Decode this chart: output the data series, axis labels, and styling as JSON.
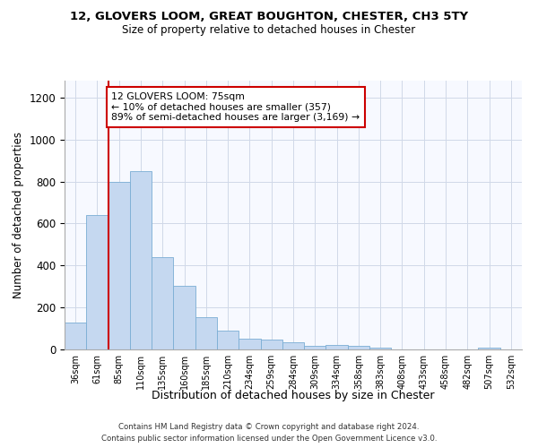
{
  "title1": "12, GLOVERS LOOM, GREAT BOUGHTON, CHESTER, CH3 5TY",
  "title2": "Size of property relative to detached houses in Chester",
  "xlabel": "Distribution of detached houses by size in Chester",
  "ylabel": "Number of detached properties",
  "categories": [
    "36sqm",
    "61sqm",
    "85sqm",
    "110sqm",
    "135sqm",
    "160sqm",
    "185sqm",
    "210sqm",
    "234sqm",
    "259sqm",
    "284sqm",
    "309sqm",
    "334sqm",
    "358sqm",
    "383sqm",
    "408sqm",
    "433sqm",
    "458sqm",
    "482sqm",
    "507sqm",
    "532sqm"
  ],
  "values": [
    130,
    640,
    800,
    850,
    440,
    305,
    155,
    90,
    50,
    48,
    35,
    15,
    20,
    18,
    10,
    0,
    0,
    0,
    0,
    10,
    0
  ],
  "bar_color": "#c5d8f0",
  "bar_edge_color": "#7aadd4",
  "vline_x": 1.5,
  "vline_color": "#cc0000",
  "annotation_text": "12 GLOVERS LOOM: 75sqm\n← 10% of detached houses are smaller (357)\n89% of semi-detached houses are larger (3,169) →",
  "annotation_box_color": "#cc0000",
  "ylim": [
    0,
    1280
  ],
  "yticks": [
    0,
    200,
    400,
    600,
    800,
    1000,
    1200
  ],
  "footer1": "Contains HM Land Registry data © Crown copyright and database right 2024.",
  "footer2": "Contains public sector information licensed under the Open Government Licence v3.0.",
  "background_color": "#ffffff",
  "plot_bg_color": "#f7f9ff",
  "grid_color": "#d0d8e8"
}
